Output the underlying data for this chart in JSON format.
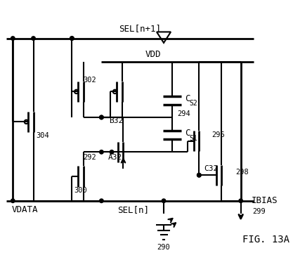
{
  "title": "",
  "background_color": "#ffffff",
  "line_color": "#000000",
  "line_width": 1.5,
  "labels": {
    "SEL_n1": "SEL[n+1]",
    "VDD": "VDD",
    "CS2": "C",
    "CS2_sub": "S2",
    "CS1": "C",
    "CS1_sub": "S1",
    "B32": "B32",
    "A32": "A32",
    "C32": "C32",
    "num290": "290",
    "num292": "292",
    "num294": "294",
    "num296": "296",
    "num298": "298",
    "num299": "299",
    "num300": "300",
    "num302": "302",
    "num304": "304",
    "VDATA": "VDATA",
    "SEL_n": "SEL[n]",
    "IBIAS": "IBIAS",
    "fig_label": "FIG. 13A"
  }
}
